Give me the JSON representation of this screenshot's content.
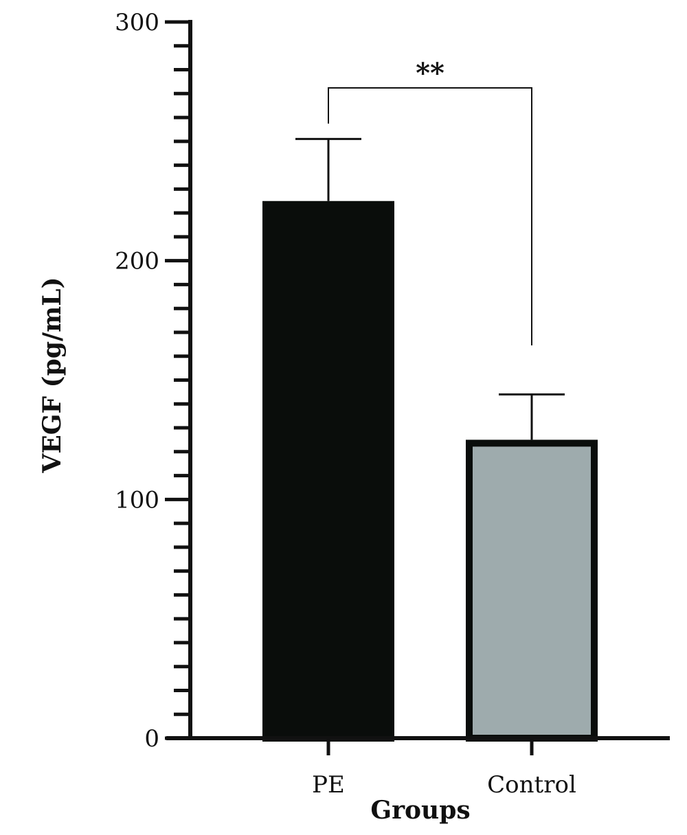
{
  "chart_data": {
    "type": "bar",
    "categories": [
      "PE",
      "Control"
    ],
    "values": [
      225,
      125
    ],
    "errors": [
      26,
      19
    ],
    "colors": [
      "#0a0d0b",
      "#9eabad"
    ],
    "edge_color": "#0a0d0b",
    "xlabel": "Groups",
    "ylabel": "VEGF (pg/mL)",
    "ylim": [
      0,
      300
    ],
    "yticks_major": [
      0,
      100,
      200,
      300
    ],
    "ytick_labels": [
      "0",
      "100",
      "200",
      "300"
    ],
    "yticks_minor_step": 10,
    "grid": false,
    "significance": {
      "between": [
        "PE",
        "Control"
      ],
      "label": "**"
    }
  }
}
